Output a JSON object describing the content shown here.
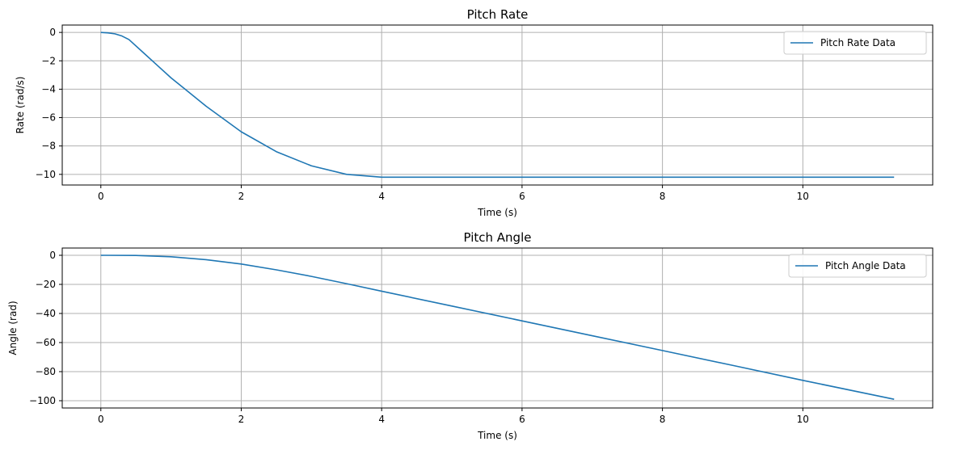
{
  "chart_data": [
    {
      "type": "line",
      "title": "Pitch Rate",
      "xlabel": "Time (s)",
      "ylabel": "Rate (rad/s)",
      "xlim": [
        -0.55,
        11.85
      ],
      "ylim": [
        -10.75,
        0.52
      ],
      "xticks": [
        0,
        2,
        4,
        6,
        8,
        10
      ],
      "yticks": [
        0,
        -2,
        -4,
        -6,
        -8,
        -10
      ],
      "xtick_labels": [
        "0",
        "2",
        "4",
        "6",
        "8",
        "10"
      ],
      "ytick_labels": [
        "0",
        "−2",
        "−4",
        "−6",
        "−8",
        "−10"
      ],
      "grid": true,
      "legend": "top-right",
      "series": [
        {
          "name": "Pitch Rate Data",
          "color": "#1f77b4",
          "x": [
            0,
            0.1,
            0.2,
            0.3,
            0.4,
            0.6,
            0.8,
            1.0,
            1.2,
            1.5,
            2.0,
            2.5,
            3.0,
            3.5,
            4.0,
            5,
            6,
            7,
            8,
            9,
            10,
            11.3
          ],
          "y": [
            0,
            -0.03,
            -0.1,
            -0.25,
            -0.5,
            -1.4,
            -2.3,
            -3.2,
            -4.0,
            -5.2,
            -7.0,
            -8.4,
            -9.4,
            -10.0,
            -10.2,
            -10.2,
            -10.2,
            -10.2,
            -10.2,
            -10.2,
            -10.2,
            -10.2
          ]
        }
      ]
    },
    {
      "type": "line",
      "title": "Pitch Angle",
      "xlabel": "Time (s)",
      "ylabel": "Angle (rad)",
      "xlim": [
        -0.55,
        11.85
      ],
      "ylim": [
        -105.0,
        5.0
      ],
      "xticks": [
        0,
        2,
        4,
        6,
        8,
        10
      ],
      "yticks": [
        0,
        -20,
        -40,
        -60,
        -80,
        -100
      ],
      "xtick_labels": [
        "0",
        "2",
        "4",
        "6",
        "8",
        "10"
      ],
      "ytick_labels": [
        "0",
        "−20",
        "−40",
        "−60",
        "−80",
        "−100"
      ],
      "grid": true,
      "legend": "top-right",
      "series": [
        {
          "name": "Pitch Angle Data",
          "color": "#1f77b4",
          "x": [
            0,
            0.5,
            1.0,
            1.5,
            2.0,
            2.5,
            3.0,
            3.5,
            4.0,
            5,
            6,
            7,
            8,
            9,
            10,
            11.3
          ],
          "y": [
            0,
            -0.1,
            -1.0,
            -3.0,
            -6.0,
            -10.0,
            -14.5,
            -19.5,
            -24.7,
            -34.9,
            -45.1,
            -55.3,
            -65.5,
            -75.7,
            -86.0,
            -99.0
          ]
        }
      ]
    }
  ]
}
